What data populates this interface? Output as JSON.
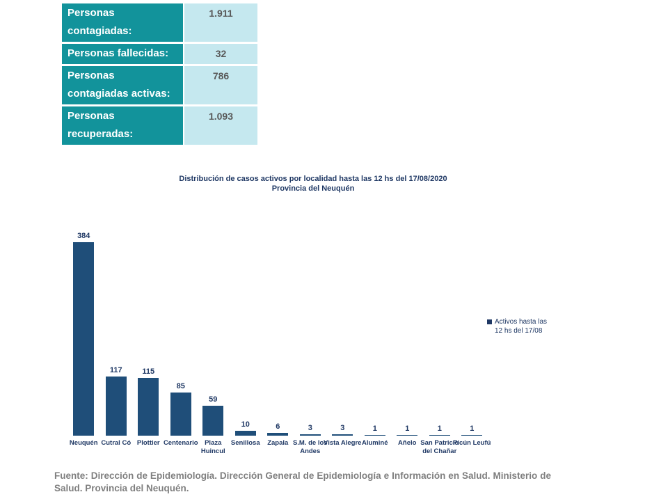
{
  "summary_table": {
    "rows": [
      {
        "label": "Personas\ncontagiadas:",
        "value": "1.911"
      },
      {
        "label": "Personas fallecidas:",
        "value": "32"
      },
      {
        "label": "Personas\ncontagiadas activas:",
        "value": "786"
      },
      {
        "label": "Personas\nrecuperadas:",
        "value": "1.093"
      }
    ]
  },
  "chart_data": {
    "type": "bar",
    "title": "Distribución de casos activos por localidad hasta las 12 hs del  17/08/2020",
    "subtitle": "Provincia del Neuquén",
    "categories": [
      "Neuquén",
      "Cutral Có",
      "Plottier",
      "Centenario",
      "Plaza Huincul",
      "Senillosa",
      "Zapala",
      "S.M. de los Andes",
      "Vista Alegre",
      "Aluminé",
      "Añelo",
      "San Patricio del Chañar",
      "Picún Leufú"
    ],
    "values": [
      384,
      117,
      115,
      85,
      59,
      10,
      6,
      3,
      3,
      1,
      1,
      1,
      1
    ],
    "ylim": [
      0,
      384
    ],
    "grid": false,
    "data_labels": true,
    "legend_position": "right",
    "legend_lines": [
      "Activos hasta las",
      "12 hs del 17/08"
    ],
    "bar_color": "#1F4E79",
    "label_color": "#1F3864"
  },
  "footer": {
    "source": "Fuente: Dirección de Epidemiología. Dirección General de Epidemiología e Información en Salud. Ministerio de Salud. Provincia del Neuquén."
  },
  "colors": {
    "table_header_bg": "#12939B",
    "table_value_bg": "#C5E8EF",
    "table_value_text": "#595959",
    "bar": "#1F4E79",
    "navy_text": "#1F3864",
    "footer_text": "#7F7F7F"
  }
}
